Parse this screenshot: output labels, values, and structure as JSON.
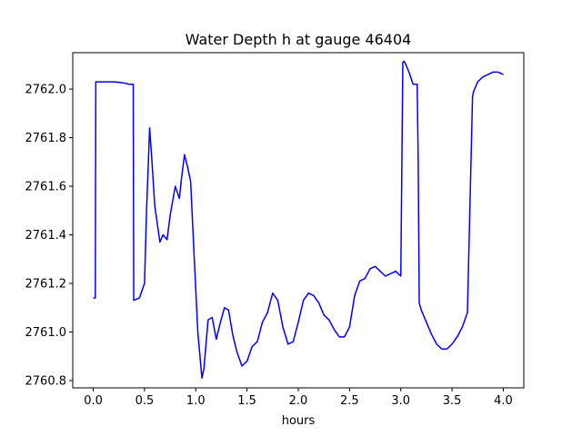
{
  "chart_data": {
    "type": "line",
    "title": "Water Depth h at gauge 46404",
    "xlabel": "hours",
    "ylabel": "",
    "xlim": [
      -0.2,
      4.2
    ],
    "ylim": [
      2760.77,
      2762.15
    ],
    "x_ticks": [
      0.0,
      0.5,
      1.0,
      1.5,
      2.0,
      2.5,
      3.0,
      3.5,
      4.0
    ],
    "x_tick_labels": [
      "0.0",
      "0.5",
      "1.0",
      "1.5",
      "2.0",
      "2.5",
      "3.0",
      "3.5",
      "4.0"
    ],
    "y_ticks": [
      2760.8,
      2761.0,
      2761.2,
      2761.4,
      2761.6,
      2761.8,
      2762.0
    ],
    "y_tick_labels": [
      "2760.8",
      "2761.0",
      "2761.2",
      "2761.4",
      "2761.6",
      "2761.8",
      "2762.0"
    ],
    "grid": false,
    "series": [
      {
        "color": "#0000ff",
        "x": [
          0.0,
          0.02,
          0.025,
          0.1,
          0.2,
          0.3,
          0.35,
          0.39,
          0.395,
          0.45,
          0.5,
          0.52,
          0.55,
          0.57,
          0.6,
          0.65,
          0.68,
          0.72,
          0.75,
          0.8,
          0.84,
          0.86,
          0.89,
          0.92,
          0.95,
          0.98,
          1.02,
          1.06,
          1.08,
          1.12,
          1.16,
          1.2,
          1.24,
          1.28,
          1.32,
          1.36,
          1.4,
          1.45,
          1.5,
          1.55,
          1.6,
          1.65,
          1.7,
          1.75,
          1.8,
          1.85,
          1.9,
          1.95,
          2.0,
          2.05,
          2.1,
          2.15,
          2.2,
          2.25,
          2.3,
          2.35,
          2.4,
          2.45,
          2.5,
          2.55,
          2.6,
          2.65,
          2.7,
          2.75,
          2.8,
          2.85,
          2.9,
          2.95,
          3.0,
          3.02,
          3.03,
          3.04,
          3.08,
          3.12,
          3.16,
          3.17,
          3.18,
          3.2,
          3.25,
          3.3,
          3.35,
          3.4,
          3.45,
          3.5,
          3.55,
          3.6,
          3.65,
          3.7,
          3.71,
          3.72,
          3.75,
          3.8,
          3.85,
          3.9,
          3.95,
          4.0
        ],
        "y": [
          2761.14,
          2761.14,
          2762.03,
          2762.03,
          2762.03,
          2762.025,
          2762.02,
          2762.02,
          2761.13,
          2761.14,
          2761.2,
          2761.5,
          2761.84,
          2761.72,
          2761.52,
          2761.37,
          2761.4,
          2761.38,
          2761.48,
          2761.6,
          2761.55,
          2761.63,
          2761.73,
          2761.68,
          2761.62,
          2761.35,
          2761.0,
          2760.81,
          2760.85,
          2761.05,
          2761.06,
          2760.97,
          2761.04,
          2761.1,
          2761.09,
          2760.99,
          2760.92,
          2760.86,
          2760.88,
          2760.94,
          2760.96,
          2761.04,
          2761.08,
          2761.16,
          2761.13,
          2761.02,
          2760.95,
          2760.96,
          2761.04,
          2761.13,
          2761.16,
          2761.15,
          2761.12,
          2761.07,
          2761.05,
          2761.01,
          2760.98,
          2760.98,
          2761.02,
          2761.15,
          2761.21,
          2761.22,
          2761.26,
          2761.27,
          2761.25,
          2761.23,
          2761.24,
          2761.25,
          2761.23,
          2762.11,
          2762.115,
          2762.11,
          2762.07,
          2762.02,
          2762.02,
          2761.7,
          2761.12,
          2761.09,
          2761.04,
          2760.99,
          2760.95,
          2760.93,
          2760.93,
          2760.95,
          2760.98,
          2761.02,
          2761.08,
          2761.97,
          2761.99,
          2762.0,
          2762.03,
          2762.05,
          2762.06,
          2762.07,
          2762.07,
          2762.06
        ]
      }
    ]
  }
}
